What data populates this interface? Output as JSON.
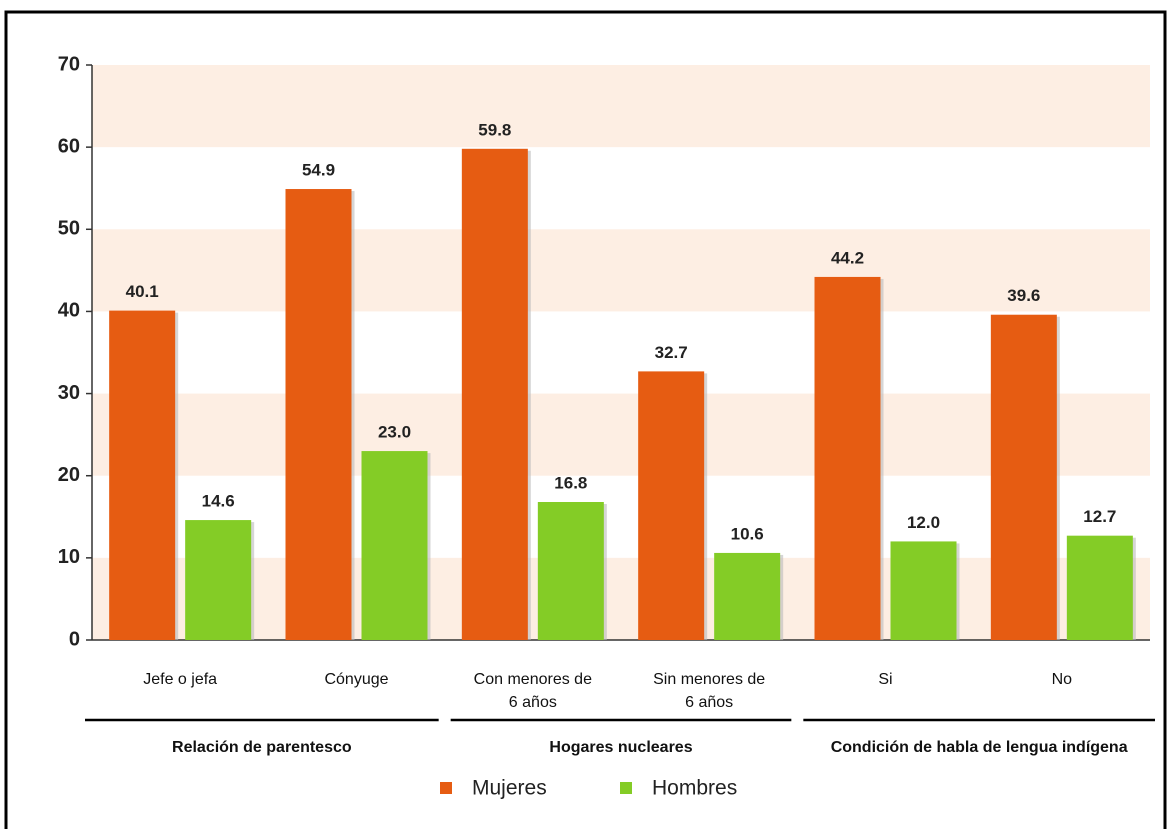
{
  "chart_data": {
    "type": "bar",
    "categories": [
      "Jefe o jefa",
      "Cónyuge",
      "Con menores de 6 años",
      "Sin menores de 6 años",
      "Si",
      "No"
    ],
    "groups": [
      "Relación de parentesco",
      "Hogares nucleares",
      "Condición de habla de lengua indígena"
    ],
    "series": [
      {
        "name": "Mujeres",
        "color": "#e65c12",
        "values": [
          40.1,
          54.9,
          59.8,
          32.7,
          44.2,
          39.6
        ],
        "value_labels": [
          "40.1",
          "54.9",
          "59.8",
          "32.7",
          "44.2",
          "39.6"
        ]
      },
      {
        "name": "Hombres",
        "color": "#84cc26",
        "values": [
          14.6,
          23.0,
          16.8,
          10.6,
          12.0,
          12.7
        ],
        "value_labels": [
          "14.6",
          "23.0",
          "16.8",
          "10.6",
          "12.0",
          "12.7"
        ]
      }
    ],
    "ylim": [
      0,
      70
    ],
    "yticks": [
      0,
      10,
      20,
      30,
      40,
      50,
      60,
      70
    ],
    "bands": true
  }
}
